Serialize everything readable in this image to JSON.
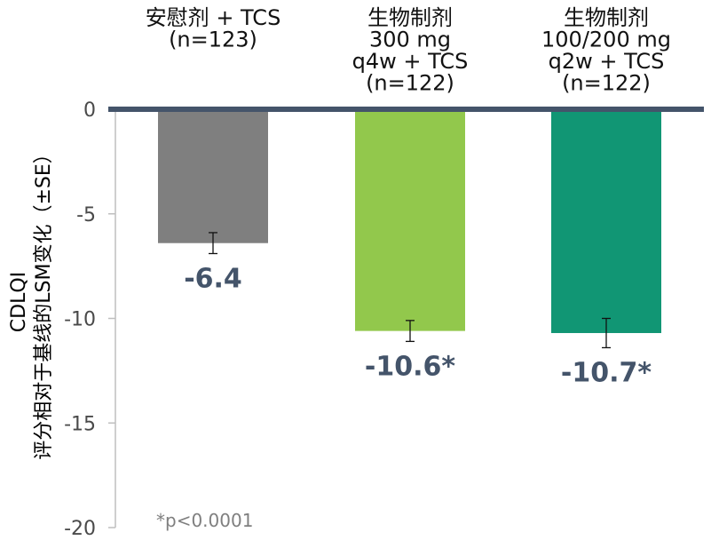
{
  "chart_data": {
    "type": "bar",
    "categories": [
      [
        "安慰剂 + TCS",
        "(n=123)"
      ],
      [
        "生物制剂",
        "300 mg",
        "q4w + TCS",
        "(n=122)"
      ],
      [
        "生物制剂",
        "100/200 mg",
        "q2w + TCS",
        "(n=122)"
      ]
    ],
    "values": [
      -6.4,
      -10.6,
      -10.7
    ],
    "errors": [
      0.5,
      0.5,
      0.7
    ],
    "value_labels": [
      "-6.4",
      "-10.6*",
      "-10.7*"
    ],
    "colors": [
      "#7f7f7f",
      "#92c84c",
      "#119674"
    ],
    "ylabel": [
      "CDLQI",
      "评分相对于基线的LSM变化（±SE）"
    ],
    "ylim": [
      -20,
      0
    ],
    "yticks": [
      0,
      -5,
      -10,
      -15,
      -20
    ],
    "ytick_labels": [
      "0",
      "-5",
      "-10",
      "-15",
      "-20"
    ],
    "footnote": "*p<0.0001",
    "zero_line_color": "#44546a",
    "axis_color": "#bfbfbf"
  }
}
